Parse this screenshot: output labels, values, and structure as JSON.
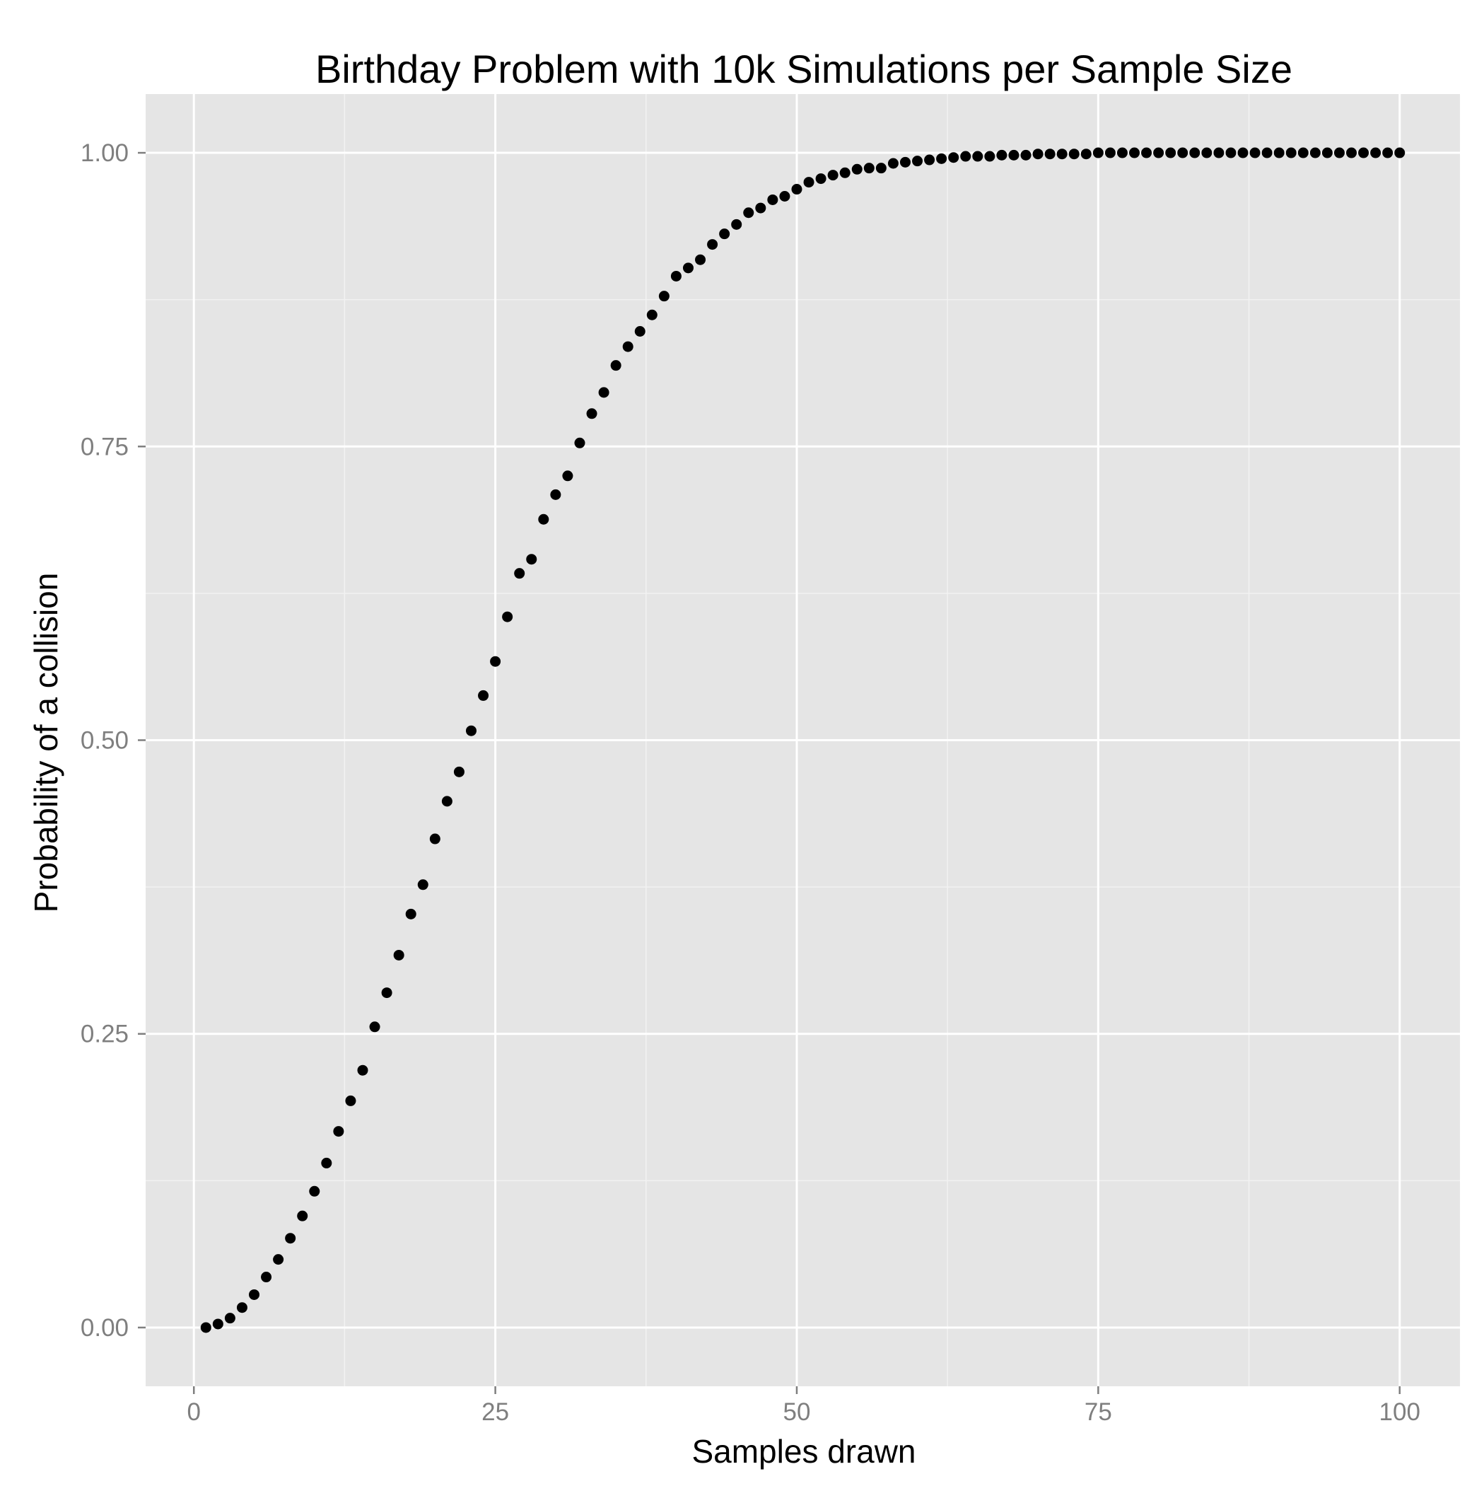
{
  "chart_data": {
    "type": "scatter",
    "title": "Birthday Problem with 10k Simulations per Sample Size",
    "xlabel": "Samples drawn",
    "ylabel": "Probability of a collision",
    "xlim": [
      -4,
      105
    ],
    "ylim": [
      -0.05,
      1.05
    ],
    "x_ticks": [
      0,
      25,
      50,
      75,
      100
    ],
    "x_tick_labels": [
      "0",
      "25",
      "50",
      "75",
      "100"
    ],
    "y_ticks": [
      0,
      0.25,
      0.5,
      0.75,
      1.0
    ],
    "y_tick_labels": [
      "0.00",
      "0.25",
      "0.50",
      "0.75",
      "1.00"
    ],
    "grid": true,
    "background": "#e5e5e5",
    "grid_major_color": "#ffffff",
    "grid_minor_color": "#f2f2f2",
    "point_color": "#000000",
    "series": [
      {
        "x": [
          1,
          2,
          3,
          4,
          5,
          6,
          7,
          8,
          9,
          10,
          11,
          12,
          13,
          14,
          15,
          16,
          17,
          18,
          19,
          20,
          21,
          22,
          23,
          24,
          25,
          26,
          27,
          28,
          29,
          30,
          31,
          32,
          33,
          34,
          35,
          36,
          37,
          38,
          39,
          40,
          41,
          42,
          43,
          44,
          45,
          46,
          47,
          48,
          49,
          50,
          51,
          52,
          53,
          54,
          55,
          56,
          57,
          58,
          59,
          60,
          61,
          62,
          63,
          64,
          65,
          66,
          67,
          68,
          69,
          70,
          71,
          72,
          73,
          74,
          75,
          76,
          77,
          78,
          79,
          80,
          81,
          82,
          83,
          84,
          85,
          86,
          87,
          88,
          89,
          90,
          91,
          92,
          93,
          94,
          95,
          96,
          97,
          98,
          99,
          100
        ],
        "y": [
          0.0,
          0.003,
          0.008,
          0.017,
          0.028,
          0.043,
          0.058,
          0.076,
          0.095,
          0.116,
          0.14,
          0.167,
          0.193,
          0.219,
          0.256,
          0.285,
          0.317,
          0.352,
          0.377,
          0.416,
          0.448,
          0.473,
          0.508,
          0.538,
          0.567,
          0.605,
          0.642,
          0.654,
          0.688,
          0.709,
          0.725,
          0.753,
          0.778,
          0.796,
          0.819,
          0.835,
          0.848,
          0.862,
          0.878,
          0.895,
          0.902,
          0.909,
          0.922,
          0.931,
          0.939,
          0.949,
          0.953,
          0.96,
          0.963,
          0.969,
          0.975,
          0.978,
          0.981,
          0.983,
          0.986,
          0.987,
          0.987,
          0.991,
          0.992,
          0.993,
          0.994,
          0.995,
          0.996,
          0.997,
          0.997,
          0.997,
          0.998,
          0.998,
          0.998,
          0.999,
          0.999,
          0.999,
          0.999,
          0.999,
          1.0,
          1.0,
          1.0,
          1.0,
          1.0,
          1.0,
          1.0,
          1.0,
          1.0,
          1.0,
          1.0,
          1.0,
          1.0,
          1.0,
          1.0,
          1.0,
          1.0,
          1.0,
          1.0,
          1.0,
          1.0,
          1.0,
          1.0,
          1.0,
          1.0,
          1.0
        ]
      }
    ]
  }
}
